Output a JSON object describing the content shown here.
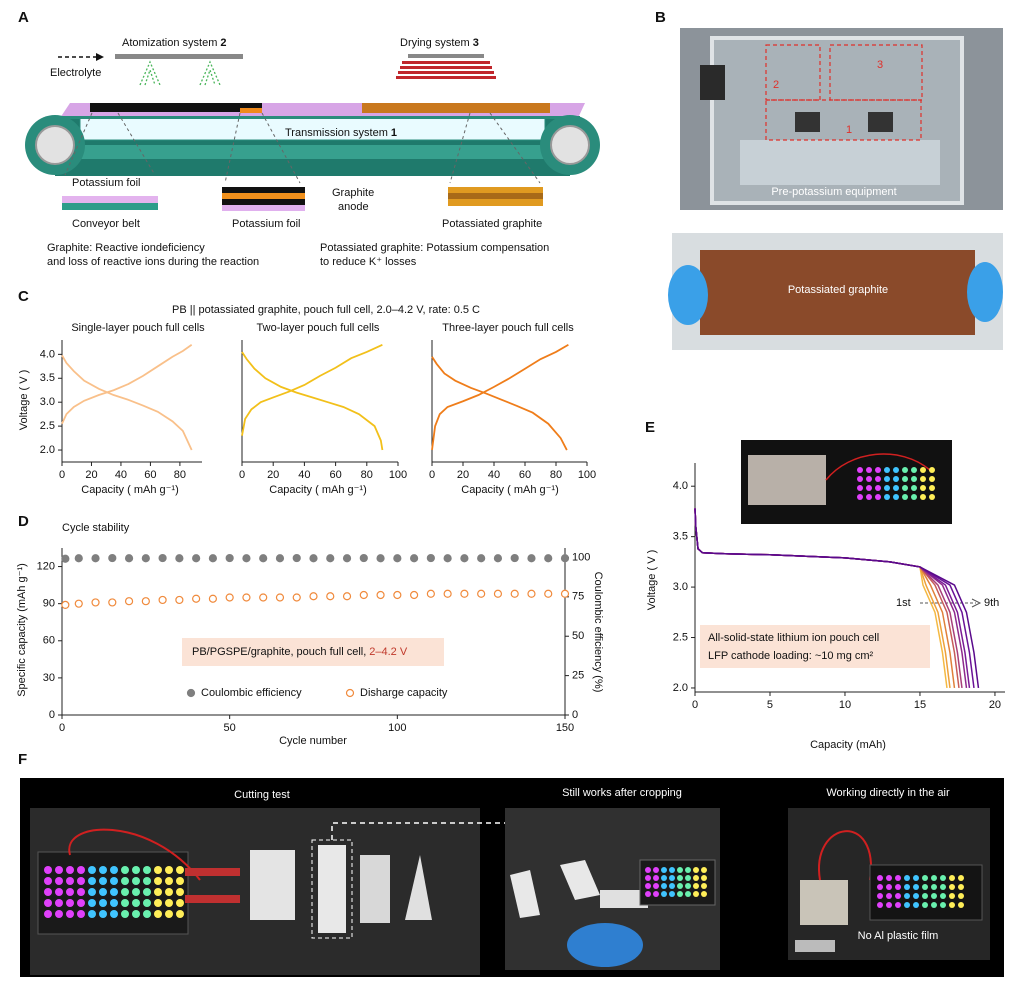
{
  "figure": {
    "panel_a": {
      "label": "A",
      "atomization": "Atomization system",
      "atomization_number": "2",
      "electrolyte": "Electrolyte",
      "drying": "Drying system",
      "drying_number": "3",
      "transmission": "Transmission system",
      "transmission_number": "1",
      "layer_labels": [
        "Potassium foil",
        "Conveyor belt",
        "Graphite",
        "anode",
        "Potassium foil",
        "Potassiated graphite"
      ],
      "notes": [
        [
          "Graphite: Reactive iondeficiency",
          "and loss of reactive ions during the reaction"
        ],
        [
          "Potassiated graphite: Potassium compensation",
          "to reduce K⁺ losses"
        ]
      ]
    },
    "panel_b": {
      "label": "B",
      "markers": [
        "2",
        "3",
        "1"
      ],
      "captions": [
        "Pre-potassium equipment",
        "Potassiated graphite"
      ]
    },
    "panel_c": {
      "label": "C",
      "title": "PB || potassiated graphite, pouch full cell, 2.0–4.2 V, rate: 0.5 C",
      "ylabel": "Voltage ( V )"
    },
    "panel_d": {
      "label": "D"
    },
    "panel_e": {
      "label": "E"
    },
    "panel_f": {
      "label": "F",
      "captions": [
        "Cutting test",
        "Still works after cropping",
        "Working directly in the air",
        "No Al plastic film"
      ]
    }
  },
  "chart_data": [
    {
      "type": "line",
      "title": "Single-layer pouch full cells",
      "xlabel": "Capacity ( mAh g⁻¹)",
      "line_width": 1.8,
      "xlim": [
        0,
        95
      ],
      "ylim": [
        1.75,
        4.3
      ],
      "xticks": [
        0,
        20,
        40,
        60,
        80
      ],
      "yticks": [
        {
          "value": 2,
          "label": "2.0"
        },
        2.5,
        {
          "value": 3,
          "label": "3.0"
        },
        3.5,
        {
          "value": 4,
          "label": "4.0"
        }
      ],
      "series": [
        {
          "color": "#f9c08a",
          "x": [
            0,
            3,
            8,
            15,
            25,
            35,
            45,
            55,
            65,
            75,
            82,
            88
          ],
          "values": [
            2.55,
            2.75,
            2.9,
            3.03,
            3.15,
            3.25,
            3.38,
            3.55,
            3.75,
            3.95,
            4.07,
            4.2
          ]
        },
        {
          "color": "#f9c08a",
          "x": [
            0,
            3,
            8,
            15,
            25,
            35,
            45,
            55,
            65,
            75,
            82,
            88
          ],
          "values": [
            3.98,
            3.82,
            3.65,
            3.45,
            3.28,
            3.15,
            3.05,
            2.93,
            2.8,
            2.6,
            2.4,
            2.0
          ]
        }
      ]
    },
    {
      "type": "line",
      "title": "Two-layer pouch full cells",
      "xlabel": "Capacity ( mAh g⁻¹)",
      "line_width": 1.8,
      "xlim": [
        0,
        100
      ],
      "ylim": [
        1.75,
        4.3
      ],
      "xticks": [
        0,
        20,
        40,
        60,
        80,
        100
      ],
      "series": [
        {
          "color": "#f2c01a",
          "x": [
            0,
            2,
            6,
            12,
            20,
            30,
            40,
            50,
            60,
            70,
            80,
            90
          ],
          "values": [
            2.3,
            2.65,
            2.85,
            3.0,
            3.1,
            3.22,
            3.36,
            3.55,
            3.72,
            3.92,
            4.05,
            4.2
          ]
        },
        {
          "color": "#f2c01a",
          "x": [
            0,
            3,
            8,
            15,
            25,
            35,
            45,
            55,
            65,
            75,
            85,
            89,
            90
          ],
          "values": [
            4.05,
            3.9,
            3.7,
            3.5,
            3.32,
            3.2,
            3.1,
            3.0,
            2.9,
            2.75,
            2.5,
            2.2,
            2.0
          ]
        }
      ]
    },
    {
      "type": "line",
      "title": "Three-layer pouch full cells",
      "xlabel": "Capacity ( mAh g⁻¹)",
      "line_width": 1.8,
      "xlim": [
        0,
        100
      ],
      "ylim": [
        1.75,
        4.3
      ],
      "xticks": [
        0,
        20,
        40,
        60,
        80,
        100
      ],
      "series": [
        {
          "color": "#ef7d1a",
          "x": [
            0,
            2,
            5,
            10,
            20,
            30,
            40,
            50,
            60,
            70,
            80,
            88
          ],
          "values": [
            2.0,
            2.5,
            2.75,
            2.9,
            3.02,
            3.15,
            3.32,
            3.5,
            3.7,
            3.9,
            4.05,
            4.2
          ]
        },
        {
          "color": "#ef7d1a",
          "x": [
            0,
            3,
            8,
            15,
            25,
            35,
            45,
            55,
            65,
            75,
            83,
            87
          ],
          "values": [
            3.95,
            3.8,
            3.6,
            3.45,
            3.3,
            3.18,
            3.05,
            2.92,
            2.78,
            2.55,
            2.25,
            2.0
          ]
        }
      ]
    },
    {
      "type": "scatter",
      "title": "Cycle stability",
      "xlabel": "Cycle number",
      "ylabel": "Specific capacity (mAh g⁻¹)",
      "y2label": "Coulombic efficiency (%)",
      "annotation": [
        "PB/PGSPE/graphite, pouch full cell,",
        "2–4.2 V"
      ],
      "xlim": [
        0,
        150
      ],
      "ylim": [
        0,
        135
      ],
      "y2lim": [
        0,
        106
      ],
      "xticks": [
        0,
        50,
        100,
        150
      ],
      "yticks": [
        0,
        30,
        60,
        90,
        120
      ],
      "y2ticks": [
        0,
        25,
        50,
        75,
        100
      ],
      "x": [
        1,
        5,
        10,
        15,
        20,
        25,
        30,
        35,
        40,
        45,
        50,
        55,
        60,
        65,
        70,
        75,
        80,
        85,
        90,
        95,
        100,
        105,
        110,
        115,
        120,
        125,
        130,
        135,
        140,
        145,
        150
      ],
      "series": [
        {
          "name": "Coulombic efficiency",
          "color": "#7f7f7f",
          "marker": "filled",
          "axis": "y2",
          "values": [
            99.2,
            99.5,
            99.5,
            99.6,
            99.5,
            99.5,
            99.6,
            99.5,
            99.5,
            99.5,
            99.6,
            99.5,
            99.5,
            99.5,
            99.6,
            99.5,
            99.5,
            99.5,
            99.6,
            99.5,
            99.5,
            99.5,
            99.6,
            99.5,
            99.5,
            99.5,
            99.5,
            99.6,
            99.5,
            99.5,
            99.5
          ]
        },
        {
          "name": "Disharge capacity",
          "color": "#f08a3c",
          "marker": "open",
          "values": [
            89,
            90,
            91,
            91,
            92,
            92,
            93,
            93,
            94,
            94,
            95,
            95,
            95,
            95,
            95,
            96,
            96,
            96,
            97,
            97,
            97,
            97,
            98,
            98,
            98,
            98,
            98,
            98,
            98,
            98,
            98
          ]
        }
      ]
    },
    {
      "type": "line",
      "xlabel": "Capacity (mAh)",
      "ylabel": "Voltage ( V )",
      "line_width": 1.5,
      "annotations": [
        "1st",
        "9th"
      ],
      "note": [
        "All-solid-state lithium ion pouch cell",
        "LFP cathode loading: ~10 mg cm²"
      ],
      "xlim": [
        0,
        20.67
      ],
      "ylim": [
        1.96,
        4.23
      ],
      "xticks": [
        0,
        5,
        10,
        15,
        20
      ],
      "yticks": [
        {
          "value": 2,
          "label": "2.0"
        },
        2.5,
        {
          "value": 3,
          "label": "3.0"
        },
        3.5,
        {
          "value": 4,
          "label": "4.0"
        }
      ],
      "series": [
        {
          "color": "#f4b942",
          "x": [
            0,
            0.05,
            0.2,
            0.5,
            2,
            5,
            10,
            13,
            15,
            15.2,
            16.0,
            16.5,
            16.8
          ],
          "values": [
            3.78,
            3.6,
            3.38,
            3.34,
            3.33,
            3.32,
            3.29,
            3.25,
            3.2,
            3.02,
            2.75,
            2.35,
            2.0
          ]
        },
        {
          "color": "#eea13a",
          "x": [
            0,
            0.05,
            0.2,
            0.5,
            2,
            5,
            10,
            13,
            15,
            15.4,
            16.2,
            16.7,
            17.0
          ],
          "values": [
            3.78,
            3.6,
            3.38,
            3.34,
            3.33,
            3.32,
            3.29,
            3.25,
            3.2,
            3.02,
            2.75,
            2.35,
            2.0
          ]
        },
        {
          "color": "#e0803a",
          "x": [
            0,
            0.05,
            0.2,
            0.5,
            2,
            5,
            10,
            13,
            15,
            15.7,
            16.5,
            17.0,
            17.3
          ],
          "values": [
            3.78,
            3.6,
            3.38,
            3.34,
            3.33,
            3.32,
            3.29,
            3.25,
            3.2,
            3.02,
            2.75,
            2.35,
            2.0
          ]
        },
        {
          "color": "#c75c58",
          "x": [
            0,
            0.05,
            0.2,
            0.5,
            2,
            5,
            10,
            13,
            15,
            16.0,
            16.8,
            17.3,
            17.6
          ],
          "values": [
            3.78,
            3.6,
            3.38,
            3.34,
            3.33,
            3.32,
            3.29,
            3.25,
            3.2,
            3.02,
            2.75,
            2.35,
            2.0
          ]
        },
        {
          "color": "#a8407a",
          "x": [
            0,
            0.05,
            0.2,
            0.5,
            2,
            5,
            10,
            13,
            15,
            16.2,
            17.0,
            17.5,
            17.8
          ],
          "values": [
            3.78,
            3.6,
            3.38,
            3.34,
            3.33,
            3.32,
            3.29,
            3.25,
            3.2,
            3.02,
            2.75,
            2.35,
            2.0
          ]
        },
        {
          "color": "#8e2a8c",
          "x": [
            0,
            0.05,
            0.2,
            0.5,
            2,
            5,
            10,
            13,
            15,
            16.5,
            17.3,
            17.8,
            18.1
          ],
          "values": [
            3.78,
            3.6,
            3.38,
            3.34,
            3.33,
            3.32,
            3.29,
            3.25,
            3.2,
            3.02,
            2.75,
            2.35,
            2.0
          ]
        },
        {
          "color": "#7a1b95",
          "x": [
            0,
            0.05,
            0.2,
            0.5,
            2,
            5,
            10,
            13,
            15,
            16.7,
            17.5,
            18.0,
            18.3
          ],
          "values": [
            3.78,
            3.6,
            3.38,
            3.34,
            3.33,
            3.32,
            3.29,
            3.25,
            3.2,
            3.02,
            2.75,
            2.35,
            2.0
          ]
        },
        {
          "color": "#6a1296",
          "x": [
            0,
            0.05,
            0.2,
            0.5,
            2,
            5,
            10,
            13,
            15,
            17.0,
            17.8,
            18.3,
            18.6
          ],
          "values": [
            3.78,
            3.6,
            3.38,
            3.34,
            3.33,
            3.32,
            3.29,
            3.25,
            3.2,
            3.02,
            2.75,
            2.35,
            2.0
          ]
        },
        {
          "color": "#5a0a8c",
          "x": [
            0,
            0.05,
            0.2,
            0.5,
            2,
            5,
            10,
            13,
            15,
            17.3,
            18.1,
            18.6,
            18.9
          ],
          "values": [
            3.78,
            3.6,
            3.38,
            3.34,
            3.33,
            3.32,
            3.29,
            3.25,
            3.2,
            3.02,
            2.75,
            2.35,
            2.0
          ]
        }
      ]
    }
  ]
}
